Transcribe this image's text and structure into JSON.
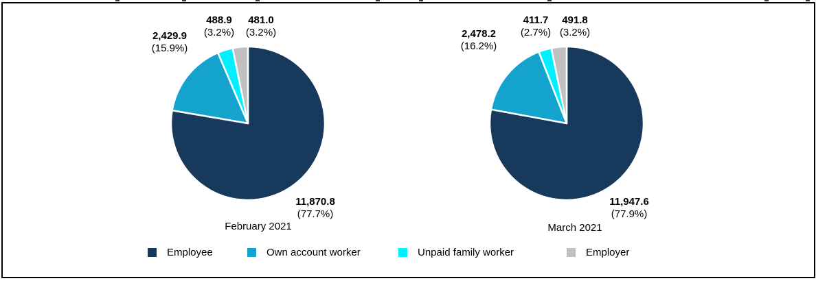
{
  "chart_data": [
    {
      "type": "pie",
      "title": "February 2021",
      "categories": [
        "Employee",
        "Own account worker",
        "Unpaid family worker",
        "Employer"
      ],
      "values": [
        11870.8,
        2429.9,
        488.9,
        481.0
      ],
      "percents": [
        77.7,
        15.9,
        3.2,
        3.2
      ],
      "colors": [
        "#16395C",
        "#14A3CC",
        "#00F0FF",
        "#C0C0C0"
      ],
      "legend_position": "bottom",
      "labels": [
        {
          "value": "11,870.8",
          "percent": "(77.7%)"
        },
        {
          "value": "2,429.9",
          "percent": "(15.9%)"
        },
        {
          "value": "488.9",
          "percent": "(3.2%)"
        },
        {
          "value": "481.0",
          "percent": "(3.2%)"
        }
      ]
    },
    {
      "type": "pie",
      "title": "March 2021",
      "categories": [
        "Employee",
        "Own account worker",
        "Unpaid family worker",
        "Employer"
      ],
      "values": [
        11947.6,
        2478.2,
        411.7,
        491.8
      ],
      "percents": [
        77.9,
        16.2,
        2.7,
        3.2
      ],
      "colors": [
        "#16395C",
        "#14A3CC",
        "#00F0FF",
        "#C0C0C0"
      ],
      "legend_position": "bottom",
      "labels": [
        {
          "value": "11,947.6",
          "percent": "(77.9%)"
        },
        {
          "value": "2,478.2",
          "percent": "(16.2%)"
        },
        {
          "value": "411.7",
          "percent": "(2.7%)"
        },
        {
          "value": "491.8",
          "percent": "(3.2%)"
        }
      ]
    }
  ],
  "legend": {
    "items": [
      {
        "label": "Employee",
        "color": "#16395C"
      },
      {
        "label": "Own account worker",
        "color": "#14A3CC"
      },
      {
        "label": "Unpaid family worker",
        "color": "#00F0FF"
      },
      {
        "label": "Employer",
        "color": "#C0C0C0"
      }
    ]
  }
}
